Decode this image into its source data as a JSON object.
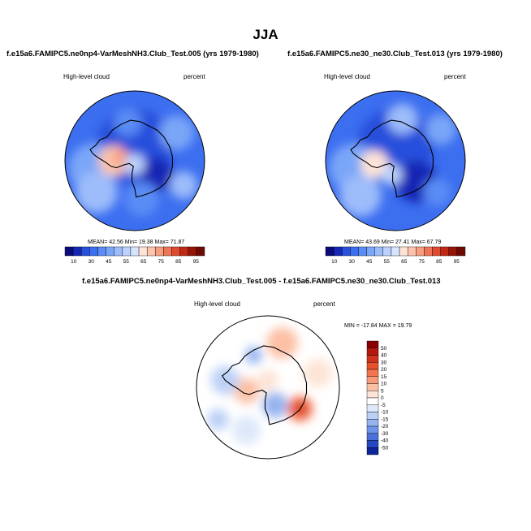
{
  "title": "JJA",
  "panels": [
    {
      "id": "p1",
      "case_title": "f.e15a6.FAMIPC5.ne0np4-VarMeshNH3.Club_Test.005 (yrs 1979-1980)",
      "left_label": "High-level cloud",
      "right_label": "percent",
      "stats": "MEAN=  42.56  Min=  19.38  Max=  71.87"
    },
    {
      "id": "p2",
      "case_title": "f.e15a6.FAMIPC5.ne30_ne30.Club_Test.013 (yrs 1979-1980)",
      "left_label": "High-level cloud",
      "right_label": "percent",
      "stats": "MEAN=  43.69  Min=  27.41  Max=  67.79"
    },
    {
      "id": "diff",
      "case_title": "f.e15a6.FAMIPC5.ne0np4-VarMeshNH3.Club_Test.005 - f.e15a6.FAMIPC5.ne30_ne30.Club_Test.013",
      "left_label": "High-level cloud",
      "right_label": "percent",
      "stats": "MIN = -17.84  MAX =  19.79"
    }
  ],
  "chart_data": [
    {
      "type": "heatmap",
      "title": "f.e15a6.FAMIPC5.ne0np4-VarMeshNH3.Club_Test.005 (yrs 1979-1980)",
      "variable": "High-level cloud",
      "units": "percent",
      "projection": "south-polar-stereographic",
      "mean": 42.56,
      "min": 19.38,
      "max": 71.87,
      "colorbar_labels": [
        "10",
        "30",
        "45",
        "55",
        "65",
        "75",
        "85",
        "95"
      ],
      "colorbar_colors": [
        "#0a0a78",
        "#1428b4",
        "#2850dc",
        "#3c6ef0",
        "#5a8cf5",
        "#7aa6f8",
        "#9cbcfa",
        "#bcd2fc",
        "#d6e4fd",
        "#ffe4d6",
        "#fcc4ac",
        "#f89e80",
        "#f07456",
        "#e04a30",
        "#c02a14",
        "#961408",
        "#6e0a04"
      ]
    },
    {
      "type": "heatmap",
      "title": "f.e15a6.FAMIPC5.ne30_ne30.Club_Test.013 (yrs 1979-1980)",
      "variable": "High-level cloud",
      "units": "percent",
      "projection": "south-polar-stereographic",
      "mean": 43.69,
      "min": 27.41,
      "max": 67.79,
      "colorbar_labels": [
        "10",
        "30",
        "45",
        "55",
        "65",
        "75",
        "85",
        "95"
      ],
      "colorbar_colors": [
        "#0a0a78",
        "#1428b4",
        "#2850dc",
        "#3c6ef0",
        "#5a8cf5",
        "#7aa6f8",
        "#9cbcfa",
        "#bcd2fc",
        "#d6e4fd",
        "#ffe4d6",
        "#fcc4ac",
        "#f89e80",
        "#f07456",
        "#e04a30",
        "#c02a14",
        "#961408",
        "#6e0a04"
      ]
    },
    {
      "type": "heatmap",
      "title": "f.e15a6.FAMIPC5.ne0np4-VarMeshNH3.Club_Test.005 - f.e15a6.FAMIPC5.ne30_ne30.Club_Test.013",
      "variable": "High-level cloud",
      "units": "percent",
      "projection": "south-polar-stereographic",
      "min": -17.84,
      "max": 19.79,
      "colorbar_labels": [
        "50",
        "40",
        "30",
        "20",
        "15",
        "10",
        "5",
        "0",
        "-5",
        "-10",
        "-15",
        "-20",
        "-30",
        "-40",
        "-50"
      ],
      "colorbar_colors": [
        "#8b0000",
        "#b2180c",
        "#d0321c",
        "#e8502e",
        "#f47450",
        "#f89a78",
        "#fcc0a4",
        "#fde4d6",
        "#ffffff",
        "#dde8fa",
        "#bcd0f6",
        "#96b4f0",
        "#6e94e8",
        "#4a70dc",
        "#2448c4",
        "#0c2498"
      ]
    }
  ]
}
